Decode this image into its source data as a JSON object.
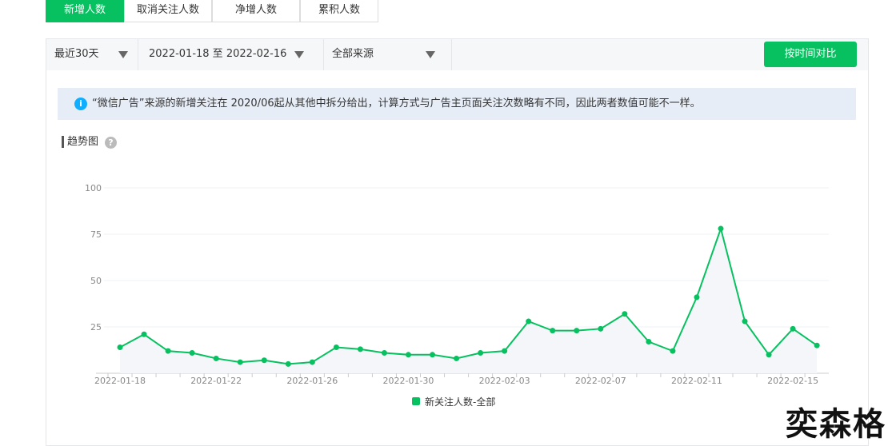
{
  "tabs": [
    "新增人数",
    "取消关注人数",
    "净增人数",
    "累积人数"
  ],
  "filters": [
    "最近30天",
    "2022-01-18 至 2022-02-16",
    "全部来源"
  ],
  "compare_button": "按时间对比",
  "notice": "“微信广告”来源的新增关注在 2020/06起从其他中拆分给出，计算方式与广告主页面关注次数略有不同，因此两者数值可能不一样。",
  "section_title": "趋势图",
  "watermark": "奕森格",
  "chart_data": {
    "type": "line",
    "categories": [
      "2022-01-18",
      null,
      null,
      null,
      "2022-01-22",
      null,
      null,
      null,
      "2022-01-26",
      null,
      null,
      null,
      "2022-01-30",
      null,
      null,
      null,
      "2022-02-03",
      null,
      null,
      null,
      "2022-02-07",
      null,
      null,
      null,
      "2022-02-11",
      null,
      null,
      null,
      "2022-02-15",
      null
    ],
    "series": [
      {
        "name": "新关注人数-全部",
        "color": "#07c160",
        "values": [
          14,
          21,
          12,
          11,
          8,
          6,
          7,
          5,
          6,
          14,
          13,
          11,
          10,
          10,
          8,
          11,
          12,
          28,
          23,
          23,
          24,
          32,
          17,
          12,
          41,
          78,
          28,
          10,
          24,
          15
        ]
      }
    ],
    "ylim": [
      0,
      100
    ],
    "yticks": [
      25,
      50,
      75,
      100
    ],
    "grid": true
  }
}
